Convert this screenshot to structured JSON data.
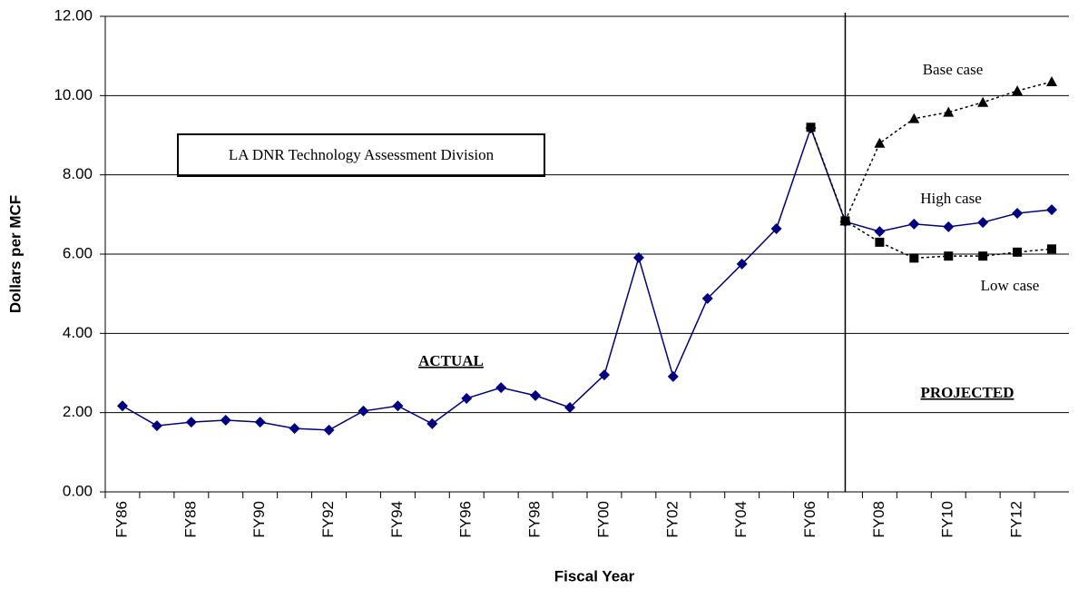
{
  "chart_data": {
    "type": "line",
    "y_label": "Dollars per MCF",
    "x_label": "Fiscal Year",
    "categories": [
      "FY86",
      null,
      "FY88",
      null,
      "FY90",
      null,
      "FY92",
      null,
      "FY94",
      null,
      "FY96",
      null,
      "FY98",
      null,
      "FY00",
      null,
      "FY02",
      null,
      "FY04",
      null,
      "FY06",
      null,
      "FY08",
      null,
      "FY10",
      null,
      "FY12",
      null
    ],
    "series": [
      {
        "name": "Base case",
        "color": "#000080",
        "marker": "diamond",
        "dash": false,
        "values": [
          2.17,
          1.67,
          1.76,
          1.81,
          1.76,
          1.6,
          1.56,
          2.04,
          2.17,
          1.72,
          2.36,
          2.63,
          2.43,
          2.13,
          2.95,
          5.91,
          2.91,
          4.88,
          5.75,
          6.64,
          9.18,
          6.82,
          6.57,
          6.76,
          6.69,
          6.8,
          7.03,
          7.12
        ]
      },
      {
        "name": "High case",
        "color": "#000000",
        "marker": "triangle",
        "dash": true,
        "values": [
          null,
          null,
          null,
          null,
          null,
          null,
          null,
          null,
          null,
          null,
          null,
          null,
          null,
          null,
          null,
          null,
          null,
          null,
          null,
          null,
          null,
          6.84,
          8.8,
          9.42,
          9.58,
          9.83,
          10.12,
          10.35
        ]
      },
      {
        "name": "Low case",
        "color": "#000000",
        "marker": "square",
        "dash": true,
        "values": [
          null,
          null,
          null,
          null,
          null,
          null,
          null,
          null,
          null,
          null,
          null,
          null,
          null,
          null,
          null,
          null,
          null,
          null,
          null,
          null,
          9.2,
          6.84,
          6.3,
          5.9,
          5.95,
          5.95,
          6.05,
          6.13
        ]
      }
    ],
    "annotations": [
      "ACTUAL",
      "PROJECTED",
      "LA DNR Technology Assessment Division"
    ],
    "ylim": [
      0,
      12
    ],
    "yticks": [
      {
        "value": 0,
        "label": "0.00"
      },
      {
        "value": 2,
        "label": "2.00"
      },
      {
        "value": 4,
        "label": "4.00"
      },
      {
        "value": 6,
        "label": "6.00"
      },
      {
        "value": 8,
        "label": "8.00"
      },
      {
        "value": 10,
        "label": "10.00"
      },
      {
        "value": 12,
        "label": "12.00"
      }
    ],
    "grid": true
  }
}
